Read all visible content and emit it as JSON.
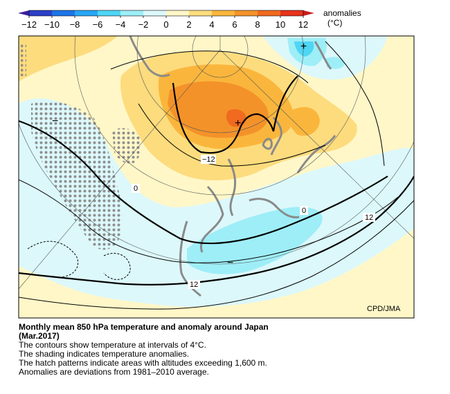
{
  "legend": {
    "unit_label_line1": "anomalies",
    "unit_label_line2": "(°C)",
    "ticks": [
      "−12",
      "−10",
      "−8",
      "−6",
      "−4",
      "−2",
      "0",
      "2",
      "4",
      "6",
      "8",
      "10",
      "12"
    ],
    "bands": [
      {
        "from": -12,
        "to": -10,
        "color": "#2b3fc8"
      },
      {
        "from": -10,
        "to": -8,
        "color": "#1c74e8"
      },
      {
        "from": -8,
        "to": -6,
        "color": "#27a6f5"
      },
      {
        "from": -6,
        "to": -4,
        "color": "#4fd6f5"
      },
      {
        "from": -4,
        "to": -2,
        "color": "#9eeef7"
      },
      {
        "from": -2,
        "to": 0,
        "color": "#dcf8fb"
      },
      {
        "from": 0,
        "to": 2,
        "color": "#fff7c8"
      },
      {
        "from": 2,
        "to": 4,
        "color": "#fddc7e"
      },
      {
        "from": 4,
        "to": 6,
        "color": "#fab63c"
      },
      {
        "from": 6,
        "to": 8,
        "color": "#f4922a"
      },
      {
        "from": 8,
        "to": 10,
        "color": "#f06a1f"
      },
      {
        "from": 10,
        "to": 12,
        "color": "#e8321c"
      }
    ]
  },
  "map": {
    "credit": "CPD/JMA",
    "contour_labels": [
      "−12",
      "0",
      "0",
      "12",
      "12"
    ],
    "markers": [
      "+",
      "+",
      "−",
      "−"
    ],
    "colors": {
      "coast": "#8a8a8a",
      "contour": "#000000",
      "hatch": "#8f8f8f",
      "grid": "#555555"
    }
  },
  "caption": {
    "title_line1": "Monthly mean 850 hPa temperature and anomaly around Japan",
    "title_line2": "(Mar.2017)",
    "line1": "The contours show temperature at intervals of 4°C.",
    "line2": "The shading indicates temperature anomalies.",
    "line3": "The hatch patterns indicate areas with altitudes exceeding 1,600 m.",
    "line4": "Anomalies are deviations from 1981–2010 average."
  }
}
